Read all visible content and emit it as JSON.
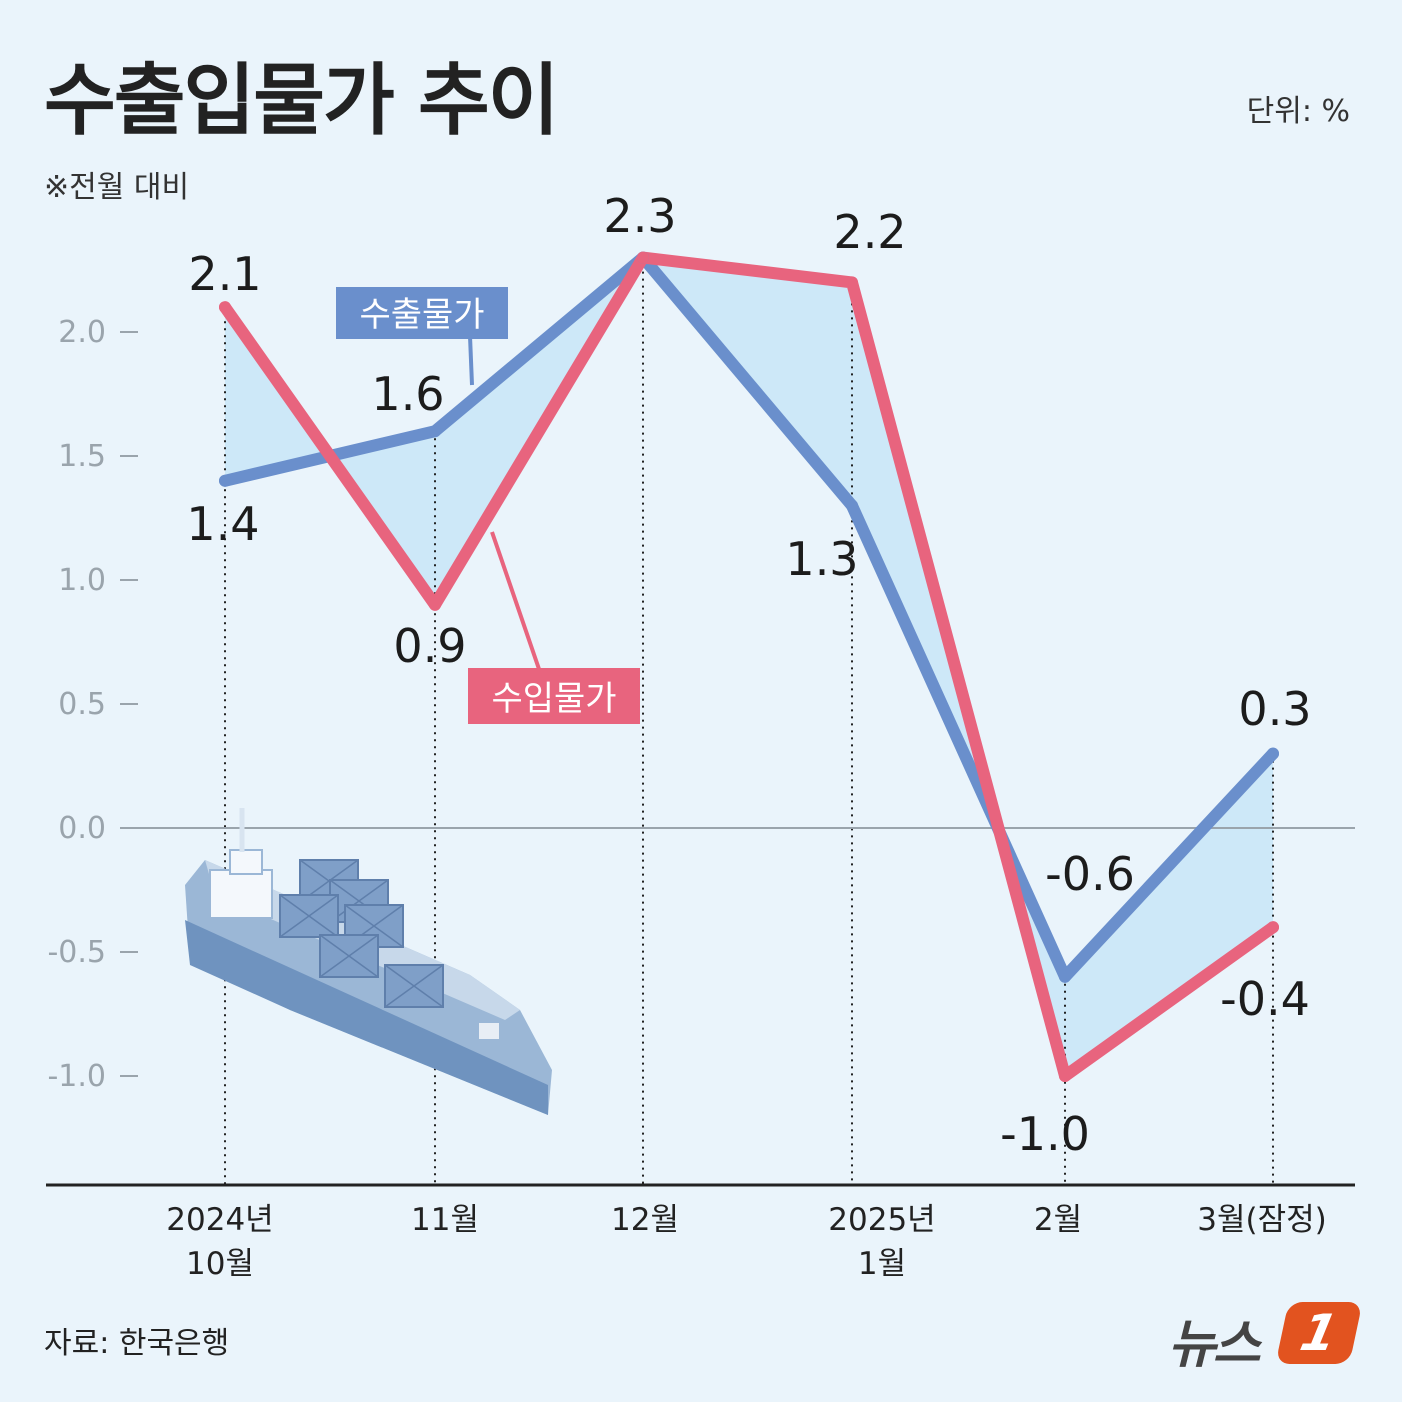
{
  "header": {
    "title": "수출입물가 추이",
    "note": "※전월 대비",
    "unit": "단위: %"
  },
  "footer": {
    "source": "자료: 한국은행",
    "logo_text": "뉴스",
    "logo_badge": "1"
  },
  "colors": {
    "background": "#eaf4fb",
    "export_line": "#6a8fcc",
    "import_line": "#e8647e",
    "fill_between": "#cde8f8"
  },
  "chart_data": {
    "type": "line",
    "categories": [
      [
        "2024년",
        "10월"
      ],
      [
        "11월"
      ],
      [
        "12월"
      ],
      [
        "2025년",
        "1월"
      ],
      [
        "2월"
      ],
      [
        "3월(잠정)"
      ]
    ],
    "series": [
      {
        "name": "수출물가",
        "values": [
          1.4,
          1.6,
          2.3,
          1.3,
          -0.6,
          0.3
        ],
        "color": "#6a8fcc"
      },
      {
        "name": "수입물가",
        "values": [
          2.1,
          0.9,
          2.3,
          2.2,
          -1.0,
          -0.4
        ],
        "color": "#e8647e"
      }
    ],
    "data_labels": [
      {
        "series": 0,
        "index": 0,
        "text": "1.4"
      },
      {
        "series": 0,
        "index": 1,
        "text": "1.6"
      },
      {
        "series": 1,
        "index": 2,
        "text": "2.3"
      },
      {
        "series": 0,
        "index": 3,
        "text": "1.3"
      },
      {
        "series": 0,
        "index": 4,
        "text": "-0.6"
      },
      {
        "series": 0,
        "index": 5,
        "text": "0.3"
      },
      {
        "series": 1,
        "index": 0,
        "text": "2.1"
      },
      {
        "series": 1,
        "index": 1,
        "text": "0.9"
      },
      {
        "series": 1,
        "index": 3,
        "text": "2.2"
      },
      {
        "series": 1,
        "index": 4,
        "text": "-1.0"
      },
      {
        "series": 1,
        "index": 5,
        "text": "-0.4"
      }
    ],
    "y_ticks": [
      "2.0",
      "1.5",
      "1.0",
      "0.5",
      "0.0",
      "-0.5",
      "-1.0"
    ],
    "ylim": [
      -1.45,
      2.45
    ],
    "zero_line": true,
    "grid": false,
    "legend": "inline tags"
  }
}
